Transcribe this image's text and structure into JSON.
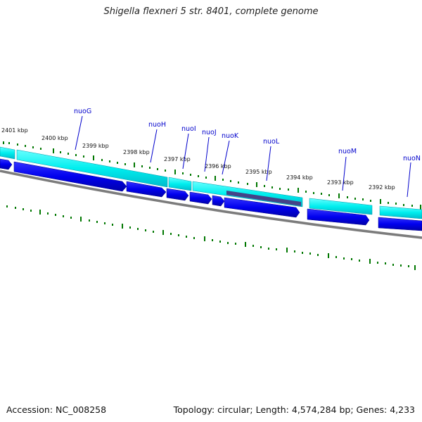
{
  "title": "Shigella flexneri 5 str. 8401, complete genome",
  "footer": {
    "accession": "Accession: NC_008258",
    "summary": "Topology: circular; Length: 4,574,284 bp; Genes: 4,233"
  },
  "scale": {
    "ticks": [
      "2401 kbp",
      "2400 kbp",
      "2399 kbp",
      "2398 kbp",
      "2397 kbp",
      "2396 kbp",
      "2395 kbp",
      "2394 kbp",
      "2393 kbp",
      "2392 kbp"
    ]
  },
  "genes": [
    "nuoG",
    "nuoH",
    "nuoI",
    "nuoJ",
    "nuoK",
    "nuoL",
    "nuoM",
    "nuoN"
  ],
  "colors": {
    "cds": "#0000ee",
    "gene": "#00eeee",
    "tick": "#007700",
    "backbone": "#808080",
    "label": "#0000cc",
    "highlight": "#444488"
  }
}
